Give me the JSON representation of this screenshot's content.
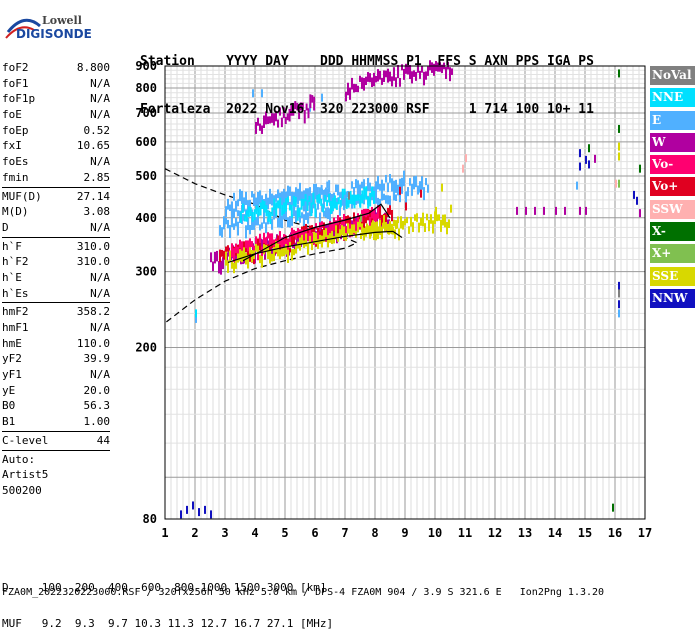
{
  "logo": {
    "line1": "Lowell",
    "line2": "DIGISONDE"
  },
  "header": {
    "line1": "Station    YYYY DAY    DDD HHMMSS P1  FFS S AXN PPS IGA PS",
    "line2": "Fortaleza  2022 Nov16  320 223000 RSF     1 714 100 10+ 11"
  },
  "params": [
    {
      "name": "foF2",
      "value": "8.800"
    },
    {
      "name": "foF1",
      "value": "N/A"
    },
    {
      "name": "foF1p",
      "value": "N/A"
    },
    {
      "name": "foE",
      "value": "N/A"
    },
    {
      "name": "foEp",
      "value": "0.52"
    },
    {
      "name": "fxI",
      "value": "10.65"
    },
    {
      "name": "foEs",
      "value": "N/A"
    },
    {
      "name": "fmin",
      "value": "2.85"
    },
    {
      "sep": true
    },
    {
      "name": "MUF(D)",
      "value": "27.14"
    },
    {
      "name": "M(D)",
      "value": "3.08"
    },
    {
      "name": "D",
      "value": "N/A"
    },
    {
      "sep": true
    },
    {
      "name": "h`F",
      "value": "310.0"
    },
    {
      "name": "h`F2",
      "value": "310.0"
    },
    {
      "name": "h`E",
      "value": "N/A"
    },
    {
      "name": "h`Es",
      "value": "N/A"
    },
    {
      "sep": true
    },
    {
      "name": "hmF2",
      "value": "358.2"
    },
    {
      "name": "hmF1",
      "value": "N/A"
    },
    {
      "name": "hmE",
      "value": "110.0"
    },
    {
      "name": "yF2",
      "value": "39.9"
    },
    {
      "name": "yF1",
      "value": "N/A"
    },
    {
      "name": "yE",
      "value": "20.0"
    },
    {
      "name": "B0",
      "value": "56.3"
    },
    {
      "name": "B1",
      "value": "1.00"
    },
    {
      "sep": true
    },
    {
      "name": "C-level",
      "value": "44"
    },
    {
      "sep": true
    },
    {
      "text": "Auto:"
    },
    {
      "text": "Artist5"
    },
    {
      "text": "500200"
    }
  ],
  "legend": [
    {
      "label": "NoVal",
      "bg": "#808080",
      "fg": "#ffffff"
    },
    {
      "label": "NNE",
      "bg": "#00e0ff",
      "fg": "#ffffff"
    },
    {
      "label": "E",
      "bg": "#50b0ff",
      "fg": "#ffffff"
    },
    {
      "label": "W",
      "bg": "#b000a0",
      "fg": "#ffffff"
    },
    {
      "label": "Vo-",
      "bg": "#ff0070",
      "fg": "#ffffff"
    },
    {
      "label": "Vo+",
      "bg": "#e00020",
      "fg": "#ffffff"
    },
    {
      "label": "SSW",
      "bg": "#ffb0b0",
      "fg": "#ffffff"
    },
    {
      "label": "X-",
      "bg": "#007000",
      "fg": "#ffffff"
    },
    {
      "label": "X+",
      "bg": "#80c050",
      "fg": "#ffffff"
    },
    {
      "label": "SSE",
      "bg": "#d8d800",
      "fg": "#ffffff"
    },
    {
      "label": "NNW",
      "bg": "#1010c0",
      "fg": "#ffffff"
    }
  ],
  "footer": {
    "line1": "D     100  200  400  600  800 1000 1500 3000 [km]",
    "line2": "MUF   9.2  9.3  9.7 10.3 11.3 12.7 16.7 27.1 [MHz]",
    "line3": "FZA0M_2022320223000.RSF / 320fx256h 50 kHz 5.0 km / DPS-4 FZA0M 904 / 3.9 S 321.6 E   Ion2Png 1.3.20"
  },
  "chart_data": {
    "type": "scatter",
    "title": "",
    "xlabel": "",
    "ylabel": "",
    "xlim": [
      1,
      17
    ],
    "ylim": [
      80,
      900
    ],
    "x_ticks": [
      1,
      2,
      3,
      4,
      5,
      6,
      7,
      8,
      9,
      10,
      11,
      12,
      13,
      14,
      15,
      16,
      17
    ],
    "y_ticks": [
      80,
      200,
      300,
      400,
      500,
      600,
      700,
      800,
      900
    ],
    "y_log_scale": true,
    "grid": true,
    "series": [
      {
        "name": "E",
        "color": "#50b0ff",
        "segments": [
          [
            [
              2.8,
              385
            ],
            [
              4.0,
              392
            ],
            [
              5.0,
              405
            ],
            [
              6.0,
              418
            ],
            [
              7.0,
              432
            ],
            [
              8.0,
              448
            ],
            [
              9.0,
              470
            ],
            [
              9.8,
              485
            ]
          ],
          [
            [
              3.0,
              420
            ],
            [
              4.0,
              428
            ],
            [
              5.0,
              440
            ],
            [
              6.0,
              450
            ],
            [
              7.0,
              462
            ],
            [
              8.0,
              475
            ],
            [
              9.0,
              490
            ]
          ],
          [
            [
              3.2,
              440
            ],
            [
              4.0,
              448
            ],
            [
              5.0,
              455
            ],
            [
              6.0,
              462
            ],
            [
              6.5,
              465
            ]
          ]
        ],
        "points": [
          [
            3.9,
            778
          ],
          [
            4.2,
            778
          ],
          [
            5.8,
            720
          ],
          [
            6.2,
            760
          ],
          [
            7.0,
            765
          ],
          [
            2.0,
            233
          ],
          [
            16.1,
            240
          ],
          [
            14.7,
            475
          ]
        ]
      },
      {
        "name": "NNE",
        "color": "#00e0ff",
        "segments": [
          [
            [
              3.5,
              410
            ],
            [
              5.0,
              425
            ],
            [
              6.5,
              440
            ],
            [
              8.0,
              455
            ]
          ]
        ],
        "points": [
          [
            2.0,
            240
          ]
        ]
      },
      {
        "name": "W",
        "color": "#b000a0",
        "segments": [
          [
            [
              4.0,
              655
            ],
            [
              4.8,
              690
            ],
            [
              5.5,
              720
            ],
            [
              6.0,
              745
            ]
          ],
          [
            [
              7.0,
              800
            ],
            [
              8.0,
              840
            ],
            [
              9.0,
              865
            ],
            [
              10.0,
              890
            ],
            [
              10.6,
              905
            ]
          ],
          [
            [
              2.5,
              320
            ],
            [
              3.5,
              330
            ],
            [
              4.5,
              345
            ],
            [
              5.5,
              360
            ],
            [
              6.5,
              375
            ],
            [
              7.5,
              390
            ],
            [
              8.5,
              405
            ]
          ]
        ],
        "points": [
          [
            12.7,
            415
          ],
          [
            13.0,
            415
          ],
          [
            13.3,
            415
          ],
          [
            13.6,
            415
          ],
          [
            14.0,
            415
          ],
          [
            14.3,
            415
          ],
          [
            14.8,
            415
          ],
          [
            15.0,
            415
          ],
          [
            16.8,
            410
          ],
          [
            15.3,
            548
          ]
        ]
      },
      {
        "name": "Vo+",
        "color": "#e00020",
        "segments": [
          [
            [
              2.8,
              328
            ],
            [
              3.8,
              340
            ],
            [
              4.8,
              355
            ],
            [
              5.8,
              370
            ],
            [
              6.8,
              385
            ],
            [
              7.8,
              402
            ],
            [
              8.6,
              418
            ]
          ]
        ],
        "points": [
          [
            9.0,
            425
          ],
          [
            9.5,
            455
          ],
          [
            8.8,
            462
          ]
        ]
      },
      {
        "name": "Vo-",
        "color": "#ff0070",
        "segments": [
          [
            [
              3.2,
              335
            ],
            [
              4.2,
              350
            ],
            [
              5.2,
              362
            ],
            [
              6.2,
              378
            ],
            [
              7.2,
              392
            ],
            [
              8.2,
              408
            ]
          ]
        ],
        "points": []
      },
      {
        "name": "SSE",
        "color": "#d8d800",
        "segments": [
          [
            [
              3.0,
              318
            ],
            [
              4.0,
              330
            ],
            [
              5.0,
              342
            ],
            [
              6.0,
              355
            ],
            [
              7.0,
              370
            ],
            [
              8.0,
              385
            ],
            [
              8.8,
              392
            ]
          ],
          [
            [
              7.5,
              372
            ],
            [
              8.5,
              382
            ],
            [
              9.5,
              392
            ],
            [
              10.5,
              400
            ]
          ]
        ],
        "points": [
          [
            10.0,
            415
          ],
          [
            10.5,
            420
          ],
          [
            10.2,
            470
          ],
          [
            16.1,
            555
          ],
          [
            16.1,
            585
          ]
        ]
      },
      {
        "name": "X-",
        "color": "#007000",
        "segments": [],
        "points": [
          [
            16.1,
            865
          ],
          [
            16.1,
            643
          ],
          [
            15.9,
            85
          ],
          [
            16.8,
            520
          ],
          [
            15.1,
            580
          ]
        ]
      },
      {
        "name": "X+",
        "color": "#80c050",
        "segments": [],
        "points": [
          [
            16.1,
            480
          ],
          [
            7.5,
            400
          ]
        ]
      },
      {
        "name": "SSW",
        "color": "#ffb0b0",
        "segments": [],
        "points": [
          [
            16.0,
            480
          ],
          [
            11.0,
            550
          ],
          [
            10.9,
            520
          ]
        ]
      },
      {
        "name": "NNW",
        "color": "#1010c0",
        "segments": [],
        "points": [
          [
            1.5,
            82
          ],
          [
            1.7,
            84
          ],
          [
            1.9,
            86
          ],
          [
            2.1,
            83
          ],
          [
            2.3,
            84
          ],
          [
            2.5,
            82
          ],
          [
            15.0,
            545
          ],
          [
            15.1,
            532
          ],
          [
            14.8,
            526
          ],
          [
            16.1,
            278
          ],
          [
            16.6,
            452
          ],
          [
            16.7,
            438
          ],
          [
            14.8,
            565
          ],
          [
            16.1,
            252
          ]
        ]
      },
      {
        "name": "NoVal",
        "color": "#808080",
        "segments": [],
        "points": [
          [
            16.1,
            267
          ],
          [
            7.1,
            450
          ]
        ]
      }
    ],
    "profile_line": [
      [
        3.1,
        315
      ],
      [
        4.0,
        330
      ],
      [
        5.0,
        342
      ],
      [
        6.0,
        352
      ],
      [
        7.0,
        362
      ],
      [
        8.0,
        370
      ],
      [
        8.6,
        372
      ],
      [
        8.9,
        360
      ]
    ],
    "trace_line": [
      [
        3.6,
        318
      ],
      [
        4.2,
        335
      ],
      [
        5.0,
        360
      ],
      [
        6.0,
        380
      ],
      [
        7.0,
        395
      ],
      [
        7.8,
        410
      ],
      [
        8.2,
        430
      ],
      [
        8.5,
        400
      ]
    ],
    "dashed_line": [
      [
        1.0,
        520
      ],
      [
        2.0,
        480
      ],
      [
        3.0,
        452
      ],
      [
        4.0,
        430
      ],
      [
        4.5,
        412
      ],
      [
        5.0,
        395
      ],
      [
        6.0,
        378
      ],
      [
        7.0,
        360
      ],
      [
        7.4,
        350
      ],
      [
        7.0,
        340
      ],
      [
        6.0,
        330
      ],
      [
        5.0,
        318
      ],
      [
        4.0,
        305
      ],
      [
        3.0,
        285
      ],
      [
        2.0,
        258
      ],
      [
        1.0,
        228
      ]
    ]
  }
}
